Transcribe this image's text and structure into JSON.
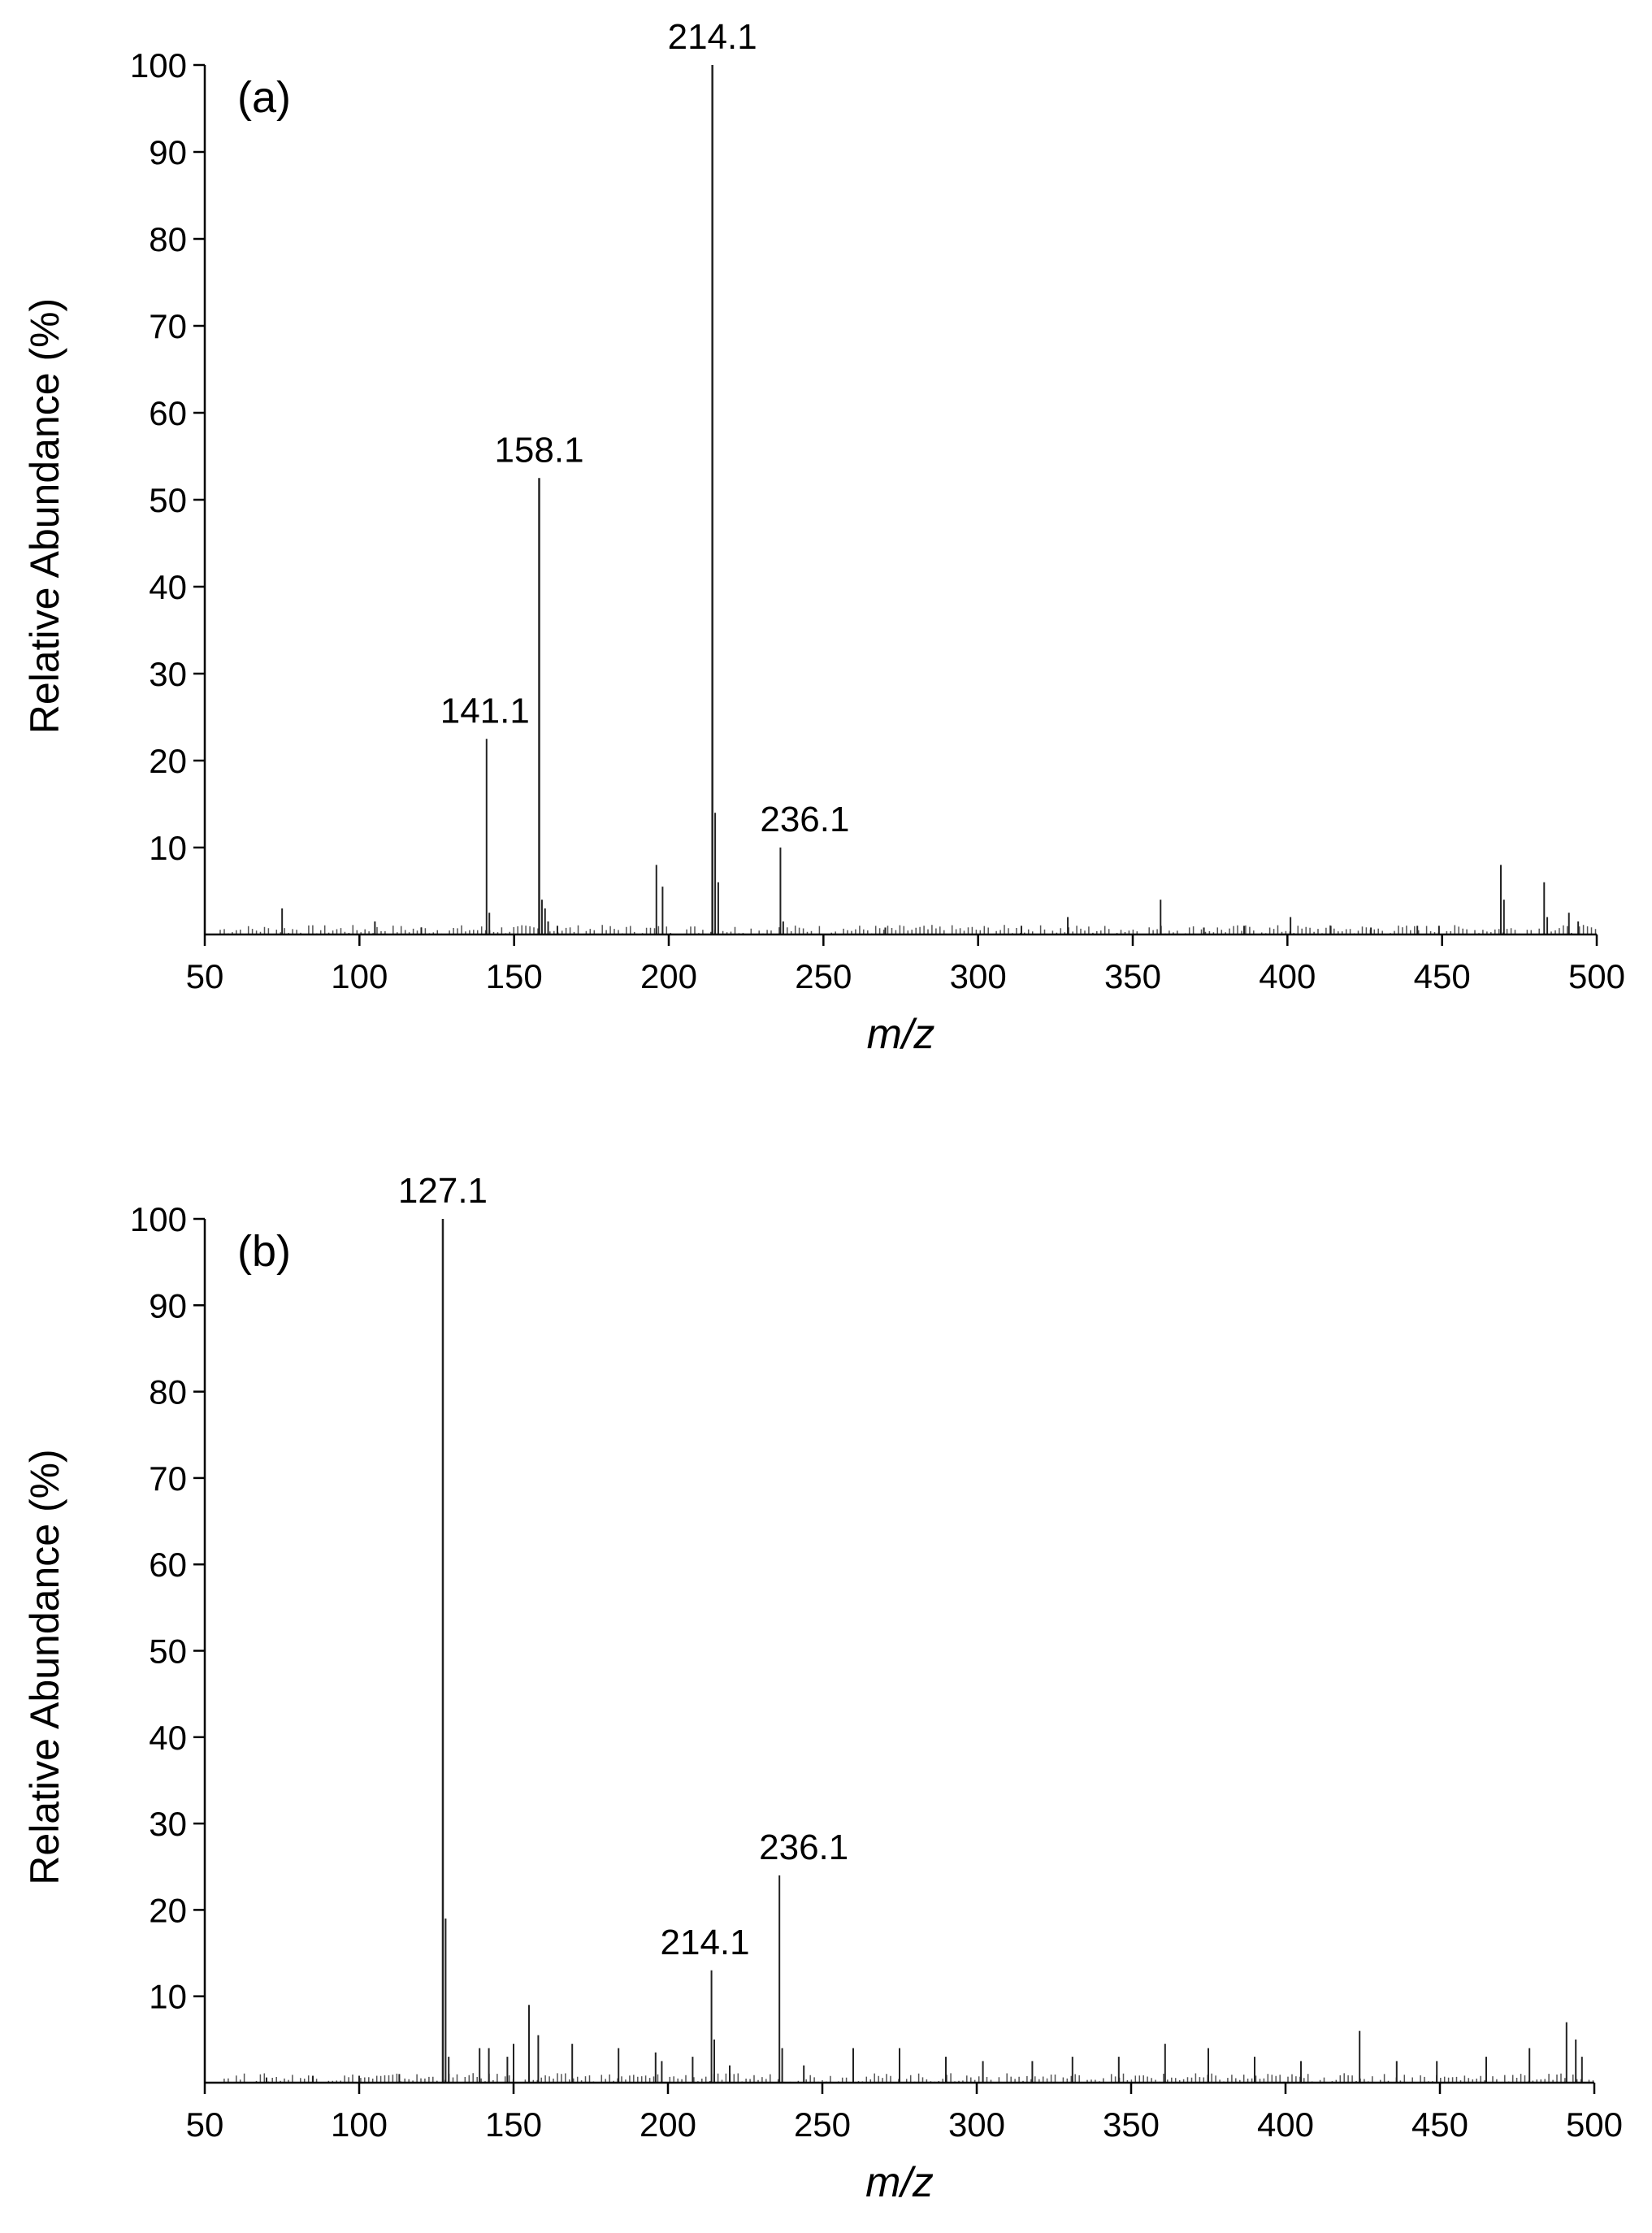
{
  "chart_data": [
    {
      "type": "bar",
      "panel_label": "(a)",
      "xlabel": "m/z",
      "ylabel": "Relative Abundance (%)",
      "xlim": [
        50,
        500
      ],
      "ylim": [
        0,
        100
      ],
      "xticks": [
        50,
        100,
        150,
        200,
        250,
        300,
        350,
        400,
        450,
        500
      ],
      "yticks": [
        10,
        20,
        30,
        40,
        50,
        60,
        70,
        80,
        90,
        100
      ],
      "grid": false,
      "annotations": [
        {
          "x": 141.1,
          "y": 22.5,
          "text": "141.1"
        },
        {
          "x": 158.1,
          "y": 52.5,
          "text": "158.1"
        },
        {
          "x": 214.1,
          "y": 100,
          "text": "214.1"
        },
        {
          "x": 236.1,
          "y": 10,
          "text": "236.1"
        }
      ],
      "peaks": [
        {
          "x": 75,
          "y": 3
        },
        {
          "x": 105,
          "y": 1.5
        },
        {
          "x": 120,
          "y": 0.8
        },
        {
          "x": 141.1,
          "y": 22.5
        },
        {
          "x": 142,
          "y": 2.5
        },
        {
          "x": 158.1,
          "y": 52.5
        },
        {
          "x": 159,
          "y": 4
        },
        {
          "x": 160,
          "y": 3
        },
        {
          "x": 161,
          "y": 1.5
        },
        {
          "x": 164,
          "y": 1
        },
        {
          "x": 196,
          "y": 8
        },
        {
          "x": 198,
          "y": 5.5
        },
        {
          "x": 214.1,
          "y": 100
        },
        {
          "x": 215,
          "y": 14
        },
        {
          "x": 216,
          "y": 6
        },
        {
          "x": 236.1,
          "y": 10
        },
        {
          "x": 237,
          "y": 1.5
        },
        {
          "x": 270,
          "y": 0.8
        },
        {
          "x": 314,
          "y": 1
        },
        {
          "x": 329,
          "y": 2
        },
        {
          "x": 359,
          "y": 4
        },
        {
          "x": 373,
          "y": 0.8
        },
        {
          "x": 386,
          "y": 1
        },
        {
          "x": 401,
          "y": 2
        },
        {
          "x": 414,
          "y": 1
        },
        {
          "x": 427,
          "y": 0.8
        },
        {
          "x": 442,
          "y": 1
        },
        {
          "x": 449,
          "y": 1
        },
        {
          "x": 469,
          "y": 8
        },
        {
          "x": 470,
          "y": 4
        },
        {
          "x": 483,
          "y": 6
        },
        {
          "x": 484,
          "y": 2
        },
        {
          "x": 491,
          "y": 2.5
        },
        {
          "x": 494,
          "y": 1.5
        }
      ]
    },
    {
      "type": "bar",
      "panel_label": "(b)",
      "xlabel": "m/z",
      "ylabel": "Relative Abundance (%)",
      "xlim": [
        50,
        500
      ],
      "ylim": [
        0,
        100
      ],
      "xticks": [
        50,
        100,
        150,
        200,
        250,
        300,
        350,
        400,
        450,
        500
      ],
      "yticks": [
        10,
        20,
        30,
        40,
        50,
        60,
        70,
        80,
        90,
        100
      ],
      "grid": false,
      "annotations": [
        {
          "x": 127.1,
          "y": 100,
          "text": "127.1"
        },
        {
          "x": 214.1,
          "y": 13,
          "text": "214.1"
        },
        {
          "x": 236.1,
          "y": 24,
          "text": "236.1"
        }
      ],
      "peaks": [
        {
          "x": 70,
          "y": 0.6
        },
        {
          "x": 85,
          "y": 0.8
        },
        {
          "x": 100,
          "y": 0.8
        },
        {
          "x": 113,
          "y": 1
        },
        {
          "x": 127.1,
          "y": 100
        },
        {
          "x": 128,
          "y": 19
        },
        {
          "x": 129,
          "y": 3
        },
        {
          "x": 139,
          "y": 4
        },
        {
          "x": 142,
          "y": 4
        },
        {
          "x": 148,
          "y": 3
        },
        {
          "x": 150,
          "y": 4.5
        },
        {
          "x": 155,
          "y": 9
        },
        {
          "x": 158,
          "y": 5.5
        },
        {
          "x": 169,
          "y": 4.5
        },
        {
          "x": 184,
          "y": 4
        },
        {
          "x": 196,
          "y": 3.5
        },
        {
          "x": 198,
          "y": 2.5
        },
        {
          "x": 208,
          "y": 3
        },
        {
          "x": 214.1,
          "y": 13
        },
        {
          "x": 215,
          "y": 5
        },
        {
          "x": 220,
          "y": 2
        },
        {
          "x": 236.1,
          "y": 24
        },
        {
          "x": 237,
          "y": 4
        },
        {
          "x": 244,
          "y": 2
        },
        {
          "x": 260,
          "y": 4
        },
        {
          "x": 275,
          "y": 4
        },
        {
          "x": 290,
          "y": 3
        },
        {
          "x": 302,
          "y": 2.5
        },
        {
          "x": 318,
          "y": 2.5
        },
        {
          "x": 331,
          "y": 3
        },
        {
          "x": 346,
          "y": 3
        },
        {
          "x": 361,
          "y": 4.5
        },
        {
          "x": 375,
          "y": 4
        },
        {
          "x": 390,
          "y": 3
        },
        {
          "x": 405,
          "y": 2.5
        },
        {
          "x": 424,
          "y": 6
        },
        {
          "x": 436,
          "y": 2.5
        },
        {
          "x": 449,
          "y": 2.5
        },
        {
          "x": 465,
          "y": 3
        },
        {
          "x": 479,
          "y": 4
        },
        {
          "x": 491,
          "y": 7
        },
        {
          "x": 494,
          "y": 5
        },
        {
          "x": 496,
          "y": 3
        }
      ]
    }
  ]
}
